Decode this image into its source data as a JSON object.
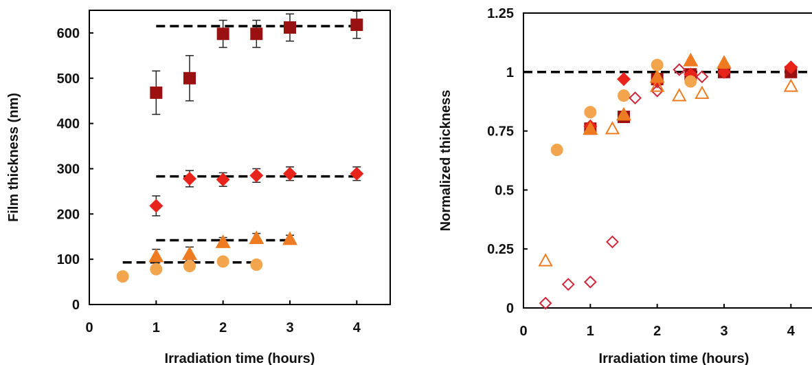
{
  "chart_data": [
    {
      "type": "scatter",
      "title": "",
      "xlabel": "Irradiation time (hours)",
      "ylabel": "Film thickness (nm)",
      "xlim": [
        0,
        4.5
      ],
      "ylim": [
        0,
        650
      ],
      "xticks": [
        "0",
        "1",
        "2",
        "3",
        "4"
      ],
      "yticks": [
        "0",
        "100",
        "200",
        "300",
        "400",
        "500",
        "600"
      ],
      "grid": false,
      "series": [
        {
          "marker": "square",
          "color": "#9b1111",
          "fill": true,
          "points": [
            {
              "x": 1,
              "y": 468,
              "err": 48
            },
            {
              "x": 1.5,
              "y": 500,
              "err": 50
            },
            {
              "x": 2,
              "y": 598,
              "err": 30
            },
            {
              "x": 2.5,
              "y": 598,
              "err": 30
            },
            {
              "x": 3,
              "y": 612,
              "err": 30
            },
            {
              "x": 4,
              "y": 618,
              "err": 30
            }
          ]
        },
        {
          "marker": "diamond",
          "color": "#e8231c",
          "fill": true,
          "points": [
            {
              "x": 1,
              "y": 218,
              "err": 22
            },
            {
              "x": 1.5,
              "y": 278,
              "err": 18
            },
            {
              "x": 2,
              "y": 276,
              "err": 15
            },
            {
              "x": 2.5,
              "y": 285,
              "err": 15
            },
            {
              "x": 3,
              "y": 289,
              "err": 15
            },
            {
              "x": 4,
              "y": 289,
              "err": 15
            }
          ]
        },
        {
          "marker": "triangle",
          "color": "#ee7b22",
          "fill": true,
          "points": [
            {
              "x": 1,
              "y": 107,
              "err": 15
            },
            {
              "x": 1.5,
              "y": 112,
              "err": 15
            },
            {
              "x": 2,
              "y": 138,
              "err": 10
            },
            {
              "x": 2.5,
              "y": 147,
              "err": 10
            },
            {
              "x": 3,
              "y": 145,
              "err": 8
            }
          ]
        },
        {
          "marker": "circle",
          "color": "#f3a54d",
          "fill": true,
          "points": [
            {
              "x": 0.5,
              "y": 62,
              "err": 0
            },
            {
              "x": 1,
              "y": 78,
              "err": 8
            },
            {
              "x": 1.5,
              "y": 85,
              "err": 8
            },
            {
              "x": 2,
              "y": 95,
              "err": 8
            },
            {
              "x": 2.5,
              "y": 88,
              "err": 5
            }
          ]
        }
      ],
      "reference_lines": [
        {
          "y": 615,
          "x0": 1,
          "x1": 4
        },
        {
          "y": 283,
          "x0": 1,
          "x1": 4
        },
        {
          "y": 142,
          "x0": 1,
          "x1": 3
        },
        {
          "y": 93,
          "x0": 0.5,
          "x1": 2.5
        }
      ]
    },
    {
      "type": "scatter",
      "title": "",
      "xlabel": "Irradiation time (hours)",
      "ylabel": "Normalized thickness",
      "xlim": [
        0,
        4.5
      ],
      "ylim": [
        0,
        1.25
      ],
      "xticks": [
        "0",
        "1",
        "2",
        "3",
        "4"
      ],
      "yticks": [
        "0",
        "0.25",
        "0.5",
        "0.75",
        "1",
        "1.25"
      ],
      "grid": false,
      "series": [
        {
          "marker": "square",
          "color": "#9b1111",
          "fill": true,
          "points": [
            {
              "x": 1,
              "y": 0.76
            },
            {
              "x": 1.5,
              "y": 0.81
            },
            {
              "x": 2,
              "y": 0.97
            },
            {
              "x": 2.5,
              "y": 0.99
            },
            {
              "x": 3,
              "y": 1.0
            },
            {
              "x": 4,
              "y": 1.0
            }
          ]
        },
        {
          "marker": "diamond",
          "color": "#e8231c",
          "fill": true,
          "points": [
            {
              "x": 1,
              "y": 0.77
            },
            {
              "x": 1.5,
              "y": 0.97
            },
            {
              "x": 2,
              "y": 0.96
            },
            {
              "x": 2.5,
              "y": 0.99
            },
            {
              "x": 3,
              "y": 1.0
            },
            {
              "x": 4,
              "y": 1.02
            }
          ]
        },
        {
          "marker": "triangle",
          "color": "#ee7b22",
          "fill": true,
          "points": [
            {
              "x": 1,
              "y": 0.76
            },
            {
              "x": 1.5,
              "y": 0.82
            },
            {
              "x": 2,
              "y": 0.98
            },
            {
              "x": 2.5,
              "y": 1.05
            },
            {
              "x": 3,
              "y": 1.04
            }
          ]
        },
        {
          "marker": "circle",
          "color": "#f3a54d",
          "fill": true,
          "points": [
            {
              "x": 0.5,
              "y": 0.67
            },
            {
              "x": 1,
              "y": 0.83
            },
            {
              "x": 1.5,
              "y": 0.9
            },
            {
              "x": 2,
              "y": 1.03
            },
            {
              "x": 2.5,
              "y": 0.96
            }
          ]
        },
        {
          "marker": "diamond",
          "color": "#d0263a",
          "fill": false,
          "points": [
            {
              "x": 0.33,
              "y": 0.02
            },
            {
              "x": 0.67,
              "y": 0.1
            },
            {
              "x": 1,
              "y": 0.11
            },
            {
              "x": 1.33,
              "y": 0.28
            },
            {
              "x": 1.67,
              "y": 0.89
            },
            {
              "x": 2,
              "y": 0.92
            },
            {
              "x": 2.33,
              "y": 1.01
            },
            {
              "x": 2.67,
              "y": 0.98
            }
          ]
        },
        {
          "marker": "triangle",
          "color": "#ee7b22",
          "fill": false,
          "points": [
            {
              "x": 0.33,
              "y": 0.2
            },
            {
              "x": 1.33,
              "y": 0.76
            },
            {
              "x": 2,
              "y": 0.94
            },
            {
              "x": 2.33,
              "y": 0.9
            },
            {
              "x": 2.67,
              "y": 0.91
            },
            {
              "x": 4,
              "y": 0.94
            }
          ]
        }
      ],
      "reference_lines": [
        {
          "y": 1.0,
          "x0": 0,
          "x1": 4.5
        }
      ]
    }
  ]
}
